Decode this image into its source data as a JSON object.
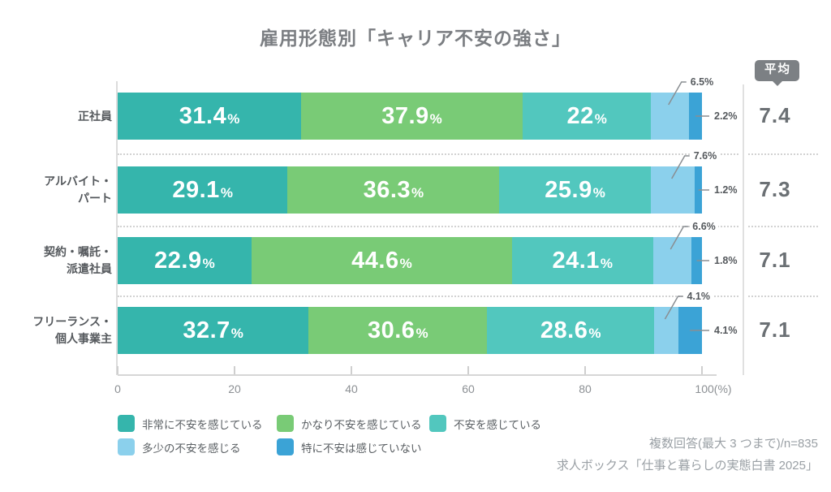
{
  "title": "雇用形態別「キャリア不安の強さ」",
  "chart_data": {
    "type": "bar",
    "orientation": "horizontal-stacked",
    "title": "雇用形態別「キャリア不安の強さ」",
    "average_header": "平均",
    "legend_position": "bottom",
    "x_axis": {
      "range": [
        0,
        100
      ],
      "ticks": [
        "0",
        "20",
        "40",
        "60",
        "80",
        "100(%)"
      ]
    },
    "series_labels": [
      "非常に不安を感じている",
      "かなり不安を感じている",
      "不安を感じている",
      "多少の不安を感じる",
      "特に不安は感じていない"
    ],
    "colors": [
      "#35b5ac",
      "#79cb76",
      "#52c7be",
      "#8bd0ec",
      "#3ba3d6"
    ],
    "rows": [
      {
        "category": "正社員",
        "category_lines": [
          "正社員"
        ],
        "values": [
          31.4,
          37.9,
          22,
          6.5,
          2.2
        ],
        "labels": [
          "31.4%",
          "37.9%",
          "22%",
          "6.5%",
          "2.2%"
        ],
        "average": "7.4"
      },
      {
        "category": "アルバイト・パート",
        "category_lines": [
          "アルバイト・",
          "パート"
        ],
        "values": [
          29.1,
          36.3,
          25.9,
          7.6,
          1.2
        ],
        "labels": [
          "29.1%",
          "36.3%",
          "25.9%",
          "7.6%",
          "1.2%"
        ],
        "average": "7.3"
      },
      {
        "category": "契約・嘱託・派遣社員",
        "category_lines": [
          "契約・嘱託・",
          "派遣社員"
        ],
        "values": [
          22.9,
          44.6,
          24.1,
          6.6,
          1.8
        ],
        "labels": [
          "22.9%",
          "44.6%",
          "24.1%",
          "6.6%",
          "1.8%"
        ],
        "average": "7.1"
      },
      {
        "category": "フリーランス・個人事業主",
        "category_lines": [
          "フリーランス・",
          "個人事業主"
        ],
        "values": [
          32.7,
          30.6,
          28.6,
          4.1,
          4.1
        ],
        "labels": [
          "32.7%",
          "30.6%",
          "28.6%",
          "4.1%",
          "4.1%"
        ],
        "average": "7.1"
      }
    ],
    "averages": [
      7.4,
      7.3,
      7.1,
      7.1
    ]
  },
  "footer": {
    "line1": "複数回答(最大 3 つまで)/n=835",
    "line2": "求人ボックス「仕事と暮らしの実態白書 2025」"
  }
}
